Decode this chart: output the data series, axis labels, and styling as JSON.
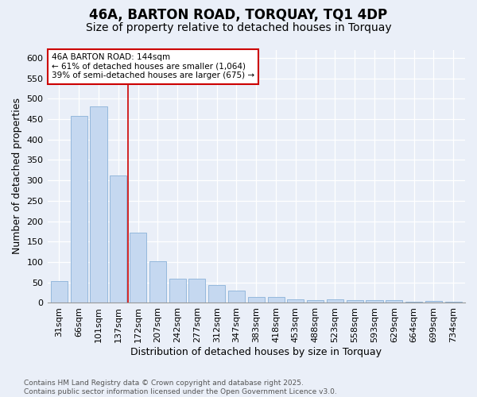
{
  "title": "46A, BARTON ROAD, TORQUAY, TQ1 4DP",
  "subtitle": "Size of property relative to detached houses in Torquay",
  "xlabel": "Distribution of detached houses by size in Torquay",
  "ylabel": "Number of detached properties",
  "categories": [
    "31sqm",
    "66sqm",
    "101sqm",
    "137sqm",
    "172sqm",
    "207sqm",
    "242sqm",
    "277sqm",
    "312sqm",
    "347sqm",
    "383sqm",
    "418sqm",
    "453sqm",
    "488sqm",
    "523sqm",
    "558sqm",
    "593sqm",
    "629sqm",
    "664sqm",
    "699sqm",
    "734sqm"
  ],
  "values": [
    54,
    457,
    481,
    311,
    172,
    101,
    59,
    59,
    44,
    31,
    14,
    14,
    8,
    7,
    9,
    7,
    7,
    6,
    2,
    5,
    3
  ],
  "bar_color": "#c5d8f0",
  "bar_edge_color": "#94b8dc",
  "bg_color": "#eaeff8",
  "grid_color": "#ffffff",
  "annotation_line1": "46A BARTON ROAD: 144sqm",
  "annotation_line2": "← 61% of detached houses are smaller (1,064)",
  "annotation_line3": "39% of semi-detached houses are larger (675) →",
  "vline_x_index": 3,
  "vline_color": "#cc0000",
  "footnote": "Contains HM Land Registry data © Crown copyright and database right 2025.\nContains public sector information licensed under the Open Government Licence v3.0.",
  "ylim": [
    0,
    620
  ],
  "yticks": [
    0,
    50,
    100,
    150,
    200,
    250,
    300,
    350,
    400,
    450,
    500,
    550,
    600
  ],
  "title_fontsize": 12,
  "subtitle_fontsize": 10,
  "label_fontsize": 9,
  "tick_fontsize": 8,
  "footnote_fontsize": 6.5
}
